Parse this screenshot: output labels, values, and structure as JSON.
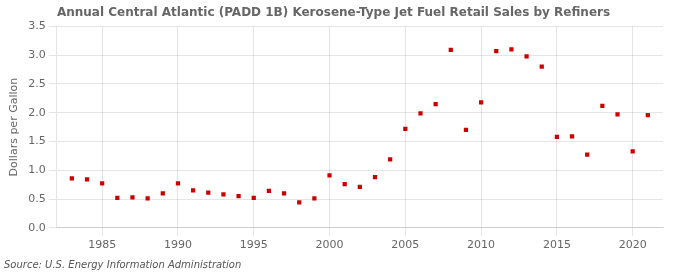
{
  "chart_data": {
    "type": "scatter",
    "title": "Annual Central Atlantic (PADD 1B) Kerosene-Type Jet Fuel Retail Sales by Refiners",
    "ylabel": "Dollars per Gallon",
    "source": "Source: U.S. Energy Information Administration",
    "x": [
      1983,
      1984,
      1985,
      1986,
      1987,
      1988,
      1989,
      1990,
      1991,
      1992,
      1993,
      1994,
      1995,
      1996,
      1997,
      1998,
      1999,
      2000,
      2001,
      2002,
      2003,
      2004,
      2005,
      2006,
      2007,
      2008,
      2009,
      2010,
      2011,
      2012,
      2013,
      2014,
      2015,
      2016,
      2017,
      2018,
      2019,
      2020,
      2021
    ],
    "values": [
      0.86,
      0.84,
      0.77,
      0.52,
      0.53,
      0.51,
      0.6,
      0.77,
      0.65,
      0.61,
      0.58,
      0.55,
      0.52,
      0.64,
      0.6,
      0.44,
      0.51,
      0.91,
      0.76,
      0.71,
      0.88,
      1.19,
      1.72,
      1.99,
      2.15,
      3.09,
      1.7,
      2.18,
      3.07,
      3.1,
      2.98,
      2.8,
      1.58,
      1.59,
      1.27,
      2.12,
      1.97,
      1.33,
      1.96
    ],
    "color": "#cc0000",
    "marker": "square",
    "xlim": [
      1982,
      2022
    ],
    "xticks": [
      1985,
      1990,
      1995,
      2000,
      2005,
      2010,
      2015,
      2020
    ],
    "ylim": [
      0.0,
      3.5
    ],
    "yticks": [
      {
        "value": 0,
        "label": "0.0"
      },
      0.5,
      {
        "value": 1,
        "label": "1.0"
      },
      1.5,
      {
        "value": 2,
        "label": "2.0"
      },
      2.5,
      {
        "value": 3,
        "label": "3.0"
      },
      3.5
    ],
    "grid": true
  }
}
